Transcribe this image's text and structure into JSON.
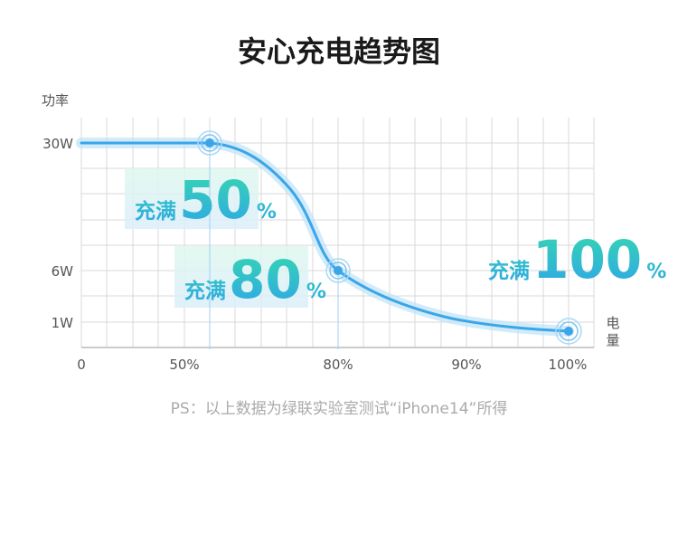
{
  "chart_data": {
    "type": "line",
    "title": "安心充电趋势图",
    "ylabel": "功率",
    "xlabel": "电量",
    "y_ticks": [
      "30W",
      "6W",
      "1W"
    ],
    "x_ticks": [
      "0",
      "50%",
      "80%",
      "90%",
      "100%"
    ],
    "series": [
      {
        "points": [
          {
            "x": "0",
            "y": "30W"
          },
          {
            "x": "50%",
            "y": "30W"
          },
          {
            "x": "80%",
            "y": "6W"
          },
          {
            "x": "100%",
            "y": "1W"
          }
        ]
      }
    ],
    "callouts": [
      {
        "prefix": "充满",
        "value": "50",
        "suffix": "%"
      },
      {
        "prefix": "充满",
        "value": "80",
        "suffix": "%"
      },
      {
        "prefix": "充满",
        "value": "100",
        "suffix": "%"
      }
    ],
    "note": "PS：以上数据为绿联实验室测试“iPhone14”所得",
    "colors": {
      "line": "#3aa6e8",
      "callout_start": "#35d6b0",
      "callout_end": "#2fa6e8",
      "grid": "#d9d9d9"
    },
    "grid": true
  }
}
